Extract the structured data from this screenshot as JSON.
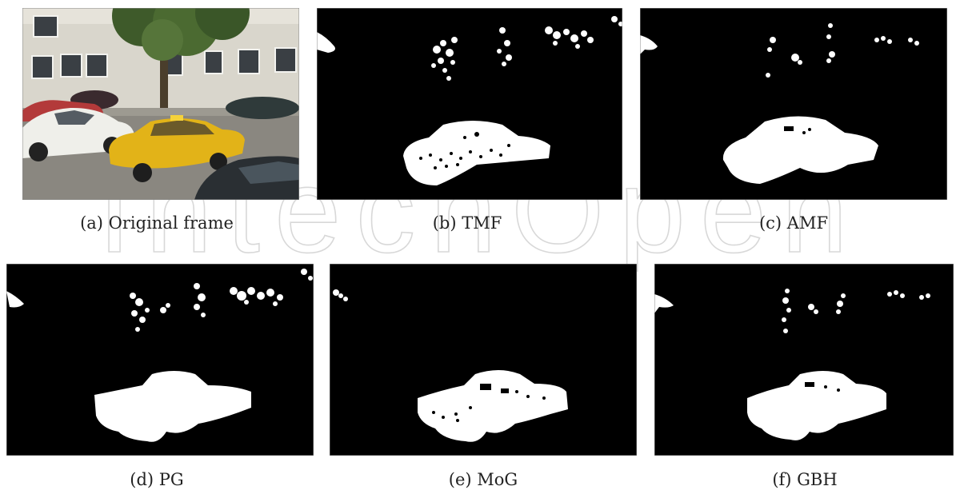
{
  "watermark": "IntechOpen",
  "panels": [
    {
      "caption": "(a)  Original frame"
    },
    {
      "caption": "(b)  TMF"
    },
    {
      "caption": "(c)  AMF"
    },
    {
      "caption": "(d)  PG"
    },
    {
      "caption": "(e)  MoG"
    },
    {
      "caption": "(f)  GBH"
    }
  ]
}
